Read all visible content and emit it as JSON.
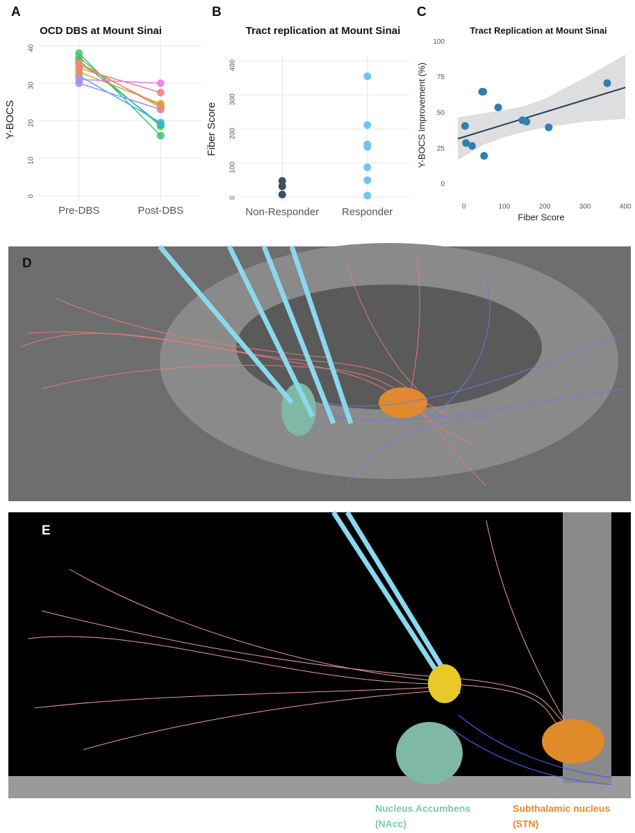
{
  "panels": [
    "A",
    "B",
    "C",
    "D",
    "E"
  ],
  "captions": {
    "nacc": [
      "Nucleus Accumbens",
      "(NAcc)"
    ],
    "stn": [
      "Subthalamic nucleus",
      "(STN)"
    ]
  },
  "chart_data": [
    {
      "type": "line",
      "title": "OCD DBS at Mount Sinai",
      "ylabel": "Y-BOCS",
      "categories": [
        "Pre-DBS",
        "Post-DBS"
      ],
      "ylim": [
        -1.5,
        42
      ],
      "yticks": [
        0,
        10,
        20,
        30,
        40
      ],
      "grid": true,
      "series": [
        {
          "color": "#3ec27a",
          "values": [
            38,
            16
          ]
        },
        {
          "color": "#5cc44a",
          "values": [
            37,
            18.5
          ]
        },
        {
          "color": "#22b8a8",
          "values": [
            36,
            19
          ]
        },
        {
          "color": "#3fb4d8",
          "values": [
            32,
            19.5
          ]
        },
        {
          "color": "#9aa836",
          "values": [
            35,
            24
          ]
        },
        {
          "color": "#d8a21e",
          "values": [
            33,
            24.5
          ]
        },
        {
          "color": "#f07a8c",
          "values": [
            34,
            27.5
          ]
        },
        {
          "color": "#e878e0",
          "values": [
            31,
            30
          ]
        },
        {
          "color": "#9b8ef0",
          "values": [
            30,
            23
          ]
        },
        {
          "color": "#f48a6a",
          "values": [
            35.5,
            23.5
          ]
        }
      ]
    },
    {
      "type": "strip",
      "title": "Tract replication at Mount Sinai",
      "ylabel": "Fiber Score",
      "categories": [
        "Non-Responder",
        "Responder"
      ],
      "colors": [
        "#3d4f63",
        "#6ec6f0"
      ],
      "values": [
        [
          48,
          32,
          8
        ],
        [
          355,
          212,
          155,
          148,
          88,
          50,
          5
        ]
      ],
      "ylim": [
        -16,
        416
      ],
      "yticks": [
        0,
        100,
        200,
        300,
        400
      ],
      "grid": true
    },
    {
      "type": "scatter",
      "title": "Tract Replication at Mount Sinai",
      "xlabel": "Fiber Score",
      "ylabel": "Y-BOCS Improvement (%)",
      "x": [
        3,
        5,
        20,
        45,
        48,
        50,
        85,
        145,
        155,
        210,
        355
      ],
      "values": [
        41,
        29,
        27,
        65,
        65,
        20,
        54,
        45,
        44,
        40,
        71
      ],
      "color": "#2f7fb0",
      "fit": {
        "color": "#1f3f5a",
        "x": [
          -15,
          400
        ],
        "y": [
          32,
          68
        ]
      },
      "band": {
        "color": "#c8c8c8",
        "x": [
          -15,
          50,
          100,
          150,
          200,
          300,
          400
        ],
        "lower": [
          17,
          28,
          33,
          37,
          40,
          44,
          46
        ],
        "upper": [
          47,
          50,
          52,
          55,
          60,
          75,
          91
        ]
      },
      "xlim": [
        -34,
        417
      ],
      "xticks": [
        0,
        100,
        200,
        300,
        400
      ],
      "ylim": [
        -8,
        105
      ],
      "yticks": [
        0,
        25,
        50,
        75,
        100
      ],
      "grid": false
    }
  ]
}
